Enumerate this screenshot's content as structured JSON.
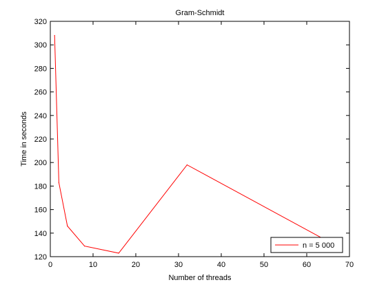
{
  "chart_data": {
    "type": "line",
    "title": "Gram-Schmidt",
    "xlabel": "Number of threads",
    "ylabel": "Time in seconds",
    "xlim": [
      0,
      70
    ],
    "ylim": [
      120,
      320
    ],
    "xticks": [
      0,
      10,
      20,
      30,
      40,
      50,
      60,
      70
    ],
    "yticks": [
      120,
      140,
      160,
      180,
      200,
      220,
      240,
      260,
      280,
      300,
      320
    ],
    "grid": false,
    "legend_position": "bottom-right",
    "series": [
      {
        "name": "n = 5 000",
        "color": "#ff0000",
        "x": [
          1,
          2,
          4,
          8,
          16,
          32,
          64
        ],
        "y": [
          308,
          183,
          146,
          129,
          123,
          198,
          135
        ]
      }
    ]
  }
}
